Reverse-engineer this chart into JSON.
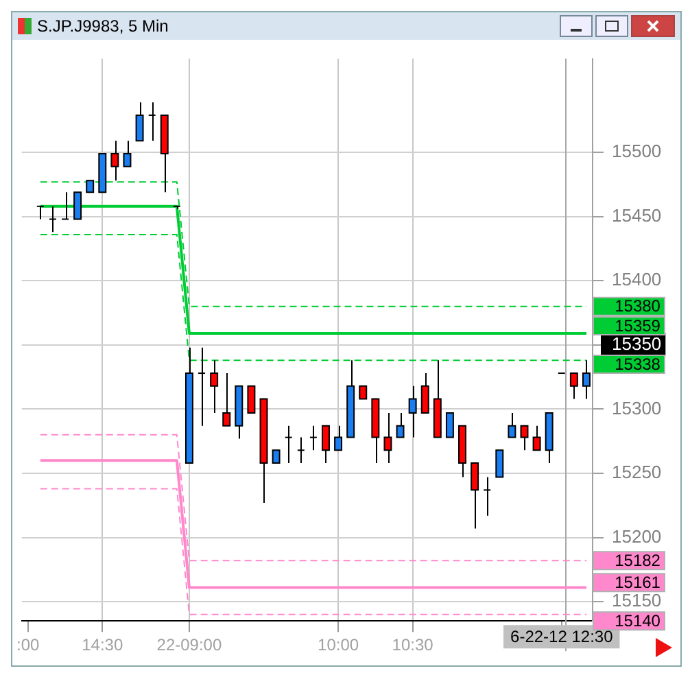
{
  "chart_data": {
    "type": "candlestick",
    "title": "S.JP.J9983, 5 Min",
    "categories": [
      ":00",
      null,
      null,
      null,
      null,
      null,
      "14:30",
      null,
      null,
      null,
      null,
      null,
      null,
      "22-09:00",
      null,
      null,
      null,
      null,
      null,
      null,
      null,
      null,
      null,
      null,
      null,
      "10:00",
      null,
      null,
      null,
      null,
      null,
      "10:30",
      null,
      null,
      null,
      null,
      null,
      null,
      null,
      null,
      null,
      null,
      null,
      "6-22-12 12:30",
      null,
      null
    ],
    "ohlc": [
      null,
      [
        15458,
        15458,
        15448,
        15458
      ],
      [
        15448,
        15458,
        15438,
        15448
      ],
      [
        15448,
        15469,
        15448,
        15448
      ],
      [
        15448,
        15469,
        15448,
        15469
      ],
      [
        15469,
        15478,
        15469,
        15478
      ],
      [
        15469,
        15499,
        15469,
        15499
      ],
      [
        15499,
        15509,
        15478,
        15489
      ],
      [
        15489,
        15509,
        15489,
        15499
      ],
      [
        15509,
        15539,
        15509,
        15529
      ],
      [
        15529,
        15539,
        15509,
        15529
      ],
      [
        15529,
        15529,
        15469,
        15499
      ],
      [
        15458,
        15458,
        15456,
        15458
      ],
      [
        15258,
        15348,
        15258,
        15328
      ],
      [
        15328,
        15348,
        15287,
        15328
      ],
      [
        15328,
        15338,
        15297,
        15318
      ],
      [
        15297,
        15328,
        15287,
        15287
      ],
      [
        15287,
        15318,
        15277,
        15318
      ],
      [
        15318,
        15318,
        15297,
        15297
      ],
      [
        15308,
        15308,
        15227,
        15258
      ],
      [
        15258,
        15268,
        15258,
        15268
      ],
      [
        15278,
        15287,
        15258,
        15278
      ],
      [
        15268,
        15278,
        15258,
        15268
      ],
      [
        15278,
        15287,
        15268,
        15278
      ],
      [
        15287,
        15287,
        15258,
        15268
      ],
      [
        15268,
        15287,
        15268,
        15278
      ],
      [
        15278,
        15338,
        15278,
        15318
      ],
      [
        15318,
        15318,
        15308,
        15308
      ],
      [
        15308,
        15308,
        15258,
        15278
      ],
      [
        15278,
        15297,
        15258,
        15268
      ],
      [
        15278,
        15297,
        15278,
        15287
      ],
      [
        15297,
        15318,
        15278,
        15308
      ],
      [
        15318,
        15328,
        15297,
        15297
      ],
      [
        15308,
        15338,
        15278,
        15278
      ],
      [
        15278,
        15297,
        15278,
        15297
      ],
      [
        15287,
        15287,
        15247,
        15258
      ],
      [
        15258,
        15258,
        15207,
        15237
      ],
      [
        15237,
        15247,
        15217,
        15237
      ],
      [
        15247,
        15268,
        15247,
        15268
      ],
      [
        15278,
        15297,
        15278,
        15287
      ],
      [
        15287,
        15287,
        15268,
        15278
      ],
      [
        15278,
        15287,
        15268,
        15268
      ],
      [
        15268,
        15297,
        15258,
        15297
      ],
      [
        15328,
        15328,
        15328,
        15328
      ],
      [
        15328,
        15328,
        15308,
        15318
      ],
      [
        15318,
        15338,
        15308,
        15328
      ]
    ],
    "colors": [
      null,
      "#000000",
      "#000000",
      "#000000",
      "#1a7ef0",
      "#1a7ef0",
      "#1a7ef0",
      "#ff0000",
      "#1a7ef0",
      "#1a7ef0",
      "#000000",
      "#ff0000",
      "#000000",
      "#1a7ef0",
      "#000000",
      "#ff0000",
      "#ff0000",
      "#1a7ef0",
      "#ff0000",
      "#ff0000",
      "#1a7ef0",
      "#000000",
      "#000000",
      "#000000",
      "#ff0000",
      "#1a7ef0",
      "#1a7ef0",
      "#ff0000",
      "#ff0000",
      "#ff0000",
      "#1a7ef0",
      "#1a7ef0",
      "#ff0000",
      "#ff0000",
      "#1a7ef0",
      "#ff0000",
      "#ff0000",
      "#000000",
      "#1a7ef0",
      "#1a7ef0",
      "#ff0000",
      "#ff0000",
      "#1a7ef0",
      "#000000",
      "#ff0000",
      "#1a7ef0"
    ],
    "series": [
      {
        "type": "line",
        "color": "#00cc33",
        "line_style": "solid",
        "value_labels": [
          null,
          null,
          null,
          null,
          null,
          null,
          null,
          null,
          null,
          null,
          null,
          null,
          null,
          null,
          null,
          null,
          null,
          null,
          null,
          null,
          null,
          null,
          null,
          null,
          null,
          null,
          null,
          null,
          null,
          null,
          null,
          null,
          null,
          null,
          null,
          null,
          null,
          null,
          null,
          null,
          null,
          null,
          null,
          null,
          null,
          "15359"
        ],
        "values": [
          null,
          15458,
          15458,
          15458,
          15458,
          15458,
          15458,
          15458,
          15458,
          15458,
          15458,
          15458,
          15458,
          15359,
          15359,
          15359,
          15359,
          15359,
          15359,
          15359,
          15359,
          15359,
          15359,
          15359,
          15359,
          15359,
          15359,
          15359,
          15359,
          15359,
          15359,
          15359,
          15359,
          15359,
          15359,
          15359,
          15359,
          15359,
          15359,
          15359,
          15359,
          15359,
          15359,
          15359,
          15359,
          15359
        ]
      },
      {
        "type": "line",
        "color": "#00cc33",
        "line_style": "dashed",
        "value_labels": [
          null,
          null,
          null,
          null,
          null,
          null,
          null,
          null,
          null,
          null,
          null,
          null,
          null,
          null,
          null,
          null,
          null,
          null,
          null,
          null,
          null,
          null,
          null,
          null,
          null,
          null,
          null,
          null,
          null,
          null,
          null,
          null,
          null,
          null,
          null,
          null,
          null,
          null,
          null,
          null,
          null,
          null,
          null,
          null,
          null,
          "15380"
        ],
        "values": [
          null,
          15477,
          15477,
          15477,
          15477,
          15477,
          15477,
          15477,
          15477,
          15477,
          15477,
          15477,
          15477,
          15380,
          15380,
          15380,
          15380,
          15380,
          15380,
          15380,
          15380,
          15380,
          15380,
          15380,
          15380,
          15380,
          15380,
          15380,
          15380,
          15380,
          15380,
          15380,
          15380,
          15380,
          15380,
          15380,
          15380,
          15380,
          15380,
          15380,
          15380,
          15380,
          15380,
          15380,
          15380,
          15380
        ]
      },
      {
        "type": "line",
        "color": "#00cc33",
        "line_style": "dashed",
        "value_labels": [
          null,
          null,
          null,
          null,
          null,
          null,
          null,
          null,
          null,
          null,
          null,
          null,
          null,
          null,
          null,
          null,
          null,
          null,
          null,
          null,
          null,
          null,
          null,
          null,
          null,
          null,
          null,
          null,
          null,
          null,
          null,
          null,
          null,
          null,
          null,
          null,
          null,
          null,
          null,
          null,
          null,
          null,
          null,
          null,
          null,
          "15338"
        ],
        "values": [
          null,
          15436,
          15436,
          15436,
          15436,
          15436,
          15436,
          15436,
          15436,
          15436,
          15436,
          15436,
          15436,
          15338,
          15338,
          15338,
          15338,
          15338,
          15338,
          15338,
          15338,
          15338,
          15338,
          15338,
          15338,
          15338,
          15338,
          15338,
          15338,
          15338,
          15338,
          15338,
          15338,
          15338,
          15338,
          15338,
          15338,
          15338,
          15338,
          15338,
          15338,
          15338,
          15338,
          15338,
          15338,
          15338
        ]
      },
      {
        "type": "line",
        "color": "#ff88cc",
        "line_style": "solid",
        "value_labels": [
          null,
          null,
          null,
          null,
          null,
          null,
          null,
          null,
          null,
          null,
          null,
          null,
          null,
          null,
          null,
          null,
          null,
          null,
          null,
          null,
          null,
          null,
          null,
          null,
          null,
          null,
          null,
          null,
          null,
          null,
          null,
          null,
          null,
          null,
          null,
          null,
          null,
          null,
          null,
          null,
          null,
          null,
          null,
          null,
          null,
          "15161"
        ],
        "values": [
          null,
          15260,
          15260,
          15260,
          15260,
          15260,
          15260,
          15260,
          15260,
          15260,
          15260,
          15260,
          15260,
          15161,
          15161,
          15161,
          15161,
          15161,
          15161,
          15161,
          15161,
          15161,
          15161,
          15161,
          15161,
          15161,
          15161,
          15161,
          15161,
          15161,
          15161,
          15161,
          15161,
          15161,
          15161,
          15161,
          15161,
          15161,
          15161,
          15161,
          15161,
          15161,
          15161,
          15161,
          15161,
          15161
        ]
      },
      {
        "type": "line",
        "color": "#ff88cc",
        "line_style": "dashed",
        "value_labels": [
          null,
          null,
          null,
          null,
          null,
          null,
          null,
          null,
          null,
          null,
          null,
          null,
          null,
          null,
          null,
          null,
          null,
          null,
          null,
          null,
          null,
          null,
          null,
          null,
          null,
          null,
          null,
          null,
          null,
          null,
          null,
          null,
          null,
          null,
          null,
          null,
          null,
          null,
          null,
          null,
          null,
          null,
          null,
          null,
          null,
          "15182"
        ],
        "values": [
          null,
          15280,
          15280,
          15280,
          15280,
          15280,
          15280,
          15280,
          15280,
          15280,
          15280,
          15280,
          15280,
          15182,
          15182,
          15182,
          15182,
          15182,
          15182,
          15182,
          15182,
          15182,
          15182,
          15182,
          15182,
          15182,
          15182,
          15182,
          15182,
          15182,
          15182,
          15182,
          15182,
          15182,
          15182,
          15182,
          15182,
          15182,
          15182,
          15182,
          15182,
          15182,
          15182,
          15182,
          15182,
          15182
        ]
      },
      {
        "type": "line",
        "color": "#ff88cc",
        "line_style": "dashed",
        "value_labels": [
          null,
          null,
          null,
          null,
          null,
          null,
          null,
          null,
          null,
          null,
          null,
          null,
          null,
          null,
          null,
          null,
          null,
          null,
          null,
          null,
          null,
          null,
          null,
          null,
          null,
          null,
          null,
          null,
          null,
          null,
          null,
          null,
          null,
          null,
          null,
          null,
          null,
          null,
          null,
          null,
          null,
          null,
          null,
          null,
          null,
          "15140"
        ],
        "values": [
          null,
          15238,
          15238,
          15238,
          15238,
          15238,
          15238,
          15238,
          15238,
          15238,
          15238,
          15238,
          15238,
          15140,
          15140,
          15140,
          15140,
          15140,
          15140,
          15140,
          15140,
          15140,
          15140,
          15140,
          15140,
          15140,
          15140,
          15140,
          15140,
          15140,
          15140,
          15140,
          15140,
          15140,
          15140,
          15140,
          15140,
          15140,
          15140,
          15140,
          15140,
          15140,
          15140,
          15140,
          15140,
          15140
        ]
      }
    ],
    "ylim": [
      15135,
      15573
    ],
    "yticks": [
      15150,
      15200,
      15250,
      15300,
      {
        "value": 15350,
        "label": "15350"
      },
      15400,
      15450,
      15500
    ],
    "grid": true,
    "legend": false,
    "marker": "none",
    "ref_lines": [
      {
        "axis": "x",
        "value": "6-22-12 12:30",
        "color": "#a8a8a8"
      }
    ]
  }
}
